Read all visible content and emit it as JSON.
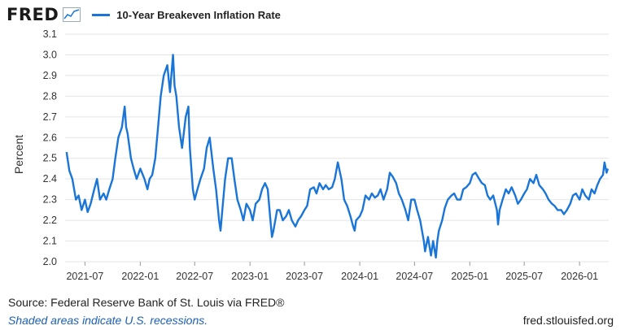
{
  "header": {
    "logo_text": "FRED",
    "logo_icon": "line-chart-icon"
  },
  "chart_data": {
    "type": "line",
    "title": "",
    "legend": "top-left",
    "xlabel": "",
    "ylabel": "Percent",
    "ylim": [
      2.0,
      3.1
    ],
    "yticks": [
      "2.0",
      "2.1",
      "2.2",
      "2.3",
      "2.4",
      "2.5",
      "2.6",
      "2.7",
      "2.8",
      "2.9",
      "3.0",
      "3.1"
    ],
    "xticks": [
      "2021-07",
      "2022-01",
      "2022-07",
      "2023-01",
      "2023-07",
      "2024-01",
      "2024-07",
      "2025-01",
      "2025-07",
      "2026-01"
    ],
    "grid": "horizontal",
    "series": [
      {
        "name": "10-Year Breakeven Inflation Rate",
        "color": "#1a75d8",
        "points": [
          [
            "2021-05-01",
            2.53
          ],
          [
            "2021-05-10",
            2.44
          ],
          [
            "2021-05-20",
            2.4
          ],
          [
            "2021-06-01",
            2.3
          ],
          [
            "2021-06-10",
            2.32
          ],
          [
            "2021-06-20",
            2.25
          ],
          [
            "2021-07-01",
            2.3
          ],
          [
            "2021-07-10",
            2.24
          ],
          [
            "2021-07-20",
            2.28
          ],
          [
            "2021-08-01",
            2.35
          ],
          [
            "2021-08-10",
            2.4
          ],
          [
            "2021-08-20",
            2.3
          ],
          [
            "2021-09-01",
            2.33
          ],
          [
            "2021-09-10",
            2.3
          ],
          [
            "2021-09-20",
            2.35
          ],
          [
            "2021-10-01",
            2.4
          ],
          [
            "2021-10-10",
            2.5
          ],
          [
            "2021-10-20",
            2.6
          ],
          [
            "2021-11-01",
            2.65
          ],
          [
            "2021-11-10",
            2.75
          ],
          [
            "2021-11-15",
            2.65
          ],
          [
            "2021-11-20",
            2.62
          ],
          [
            "2021-12-01",
            2.5
          ],
          [
            "2021-12-10",
            2.45
          ],
          [
            "2021-12-20",
            2.4
          ],
          [
            "2022-01-01",
            2.45
          ],
          [
            "2022-01-15",
            2.4
          ],
          [
            "2022-01-25",
            2.35
          ],
          [
            "2022-02-01",
            2.4
          ],
          [
            "2022-02-10",
            2.42
          ],
          [
            "2022-02-20",
            2.5
          ],
          [
            "2022-03-01",
            2.65
          ],
          [
            "2022-03-10",
            2.8
          ],
          [
            "2022-03-20",
            2.9
          ],
          [
            "2022-04-01",
            2.95
          ],
          [
            "2022-04-10",
            2.82
          ],
          [
            "2022-04-20",
            3.0
          ],
          [
            "2022-04-25",
            2.85
          ],
          [
            "2022-05-01",
            2.8
          ],
          [
            "2022-05-10",
            2.65
          ],
          [
            "2022-05-15",
            2.6
          ],
          [
            "2022-05-20",
            2.55
          ],
          [
            "2022-06-01",
            2.7
          ],
          [
            "2022-06-10",
            2.75
          ],
          [
            "2022-06-15",
            2.55
          ],
          [
            "2022-06-25",
            2.35
          ],
          [
            "2022-07-01",
            2.3
          ],
          [
            "2022-07-10",
            2.35
          ],
          [
            "2022-07-20",
            2.4
          ],
          [
            "2022-08-01",
            2.45
          ],
          [
            "2022-08-10",
            2.55
          ],
          [
            "2022-08-20",
            2.6
          ],
          [
            "2022-09-01",
            2.45
          ],
          [
            "2022-09-10",
            2.35
          ],
          [
            "2022-09-20",
            2.2
          ],
          [
            "2022-09-25",
            2.15
          ],
          [
            "2022-10-01",
            2.25
          ],
          [
            "2022-10-10",
            2.4
          ],
          [
            "2022-10-20",
            2.5
          ],
          [
            "2022-11-01",
            2.5
          ],
          [
            "2022-11-10",
            2.4
          ],
          [
            "2022-11-20",
            2.3
          ],
          [
            "2022-12-01",
            2.25
          ],
          [
            "2022-12-10",
            2.2
          ],
          [
            "2022-12-20",
            2.28
          ],
          [
            "2023-01-01",
            2.25
          ],
          [
            "2023-01-10",
            2.2
          ],
          [
            "2023-01-20",
            2.28
          ],
          [
            "2023-02-01",
            2.3
          ],
          [
            "2023-02-10",
            2.35
          ],
          [
            "2023-02-20",
            2.38
          ],
          [
            "2023-03-01",
            2.35
          ],
          [
            "2023-03-10",
            2.2
          ],
          [
            "2023-03-15",
            2.12
          ],
          [
            "2023-03-20",
            2.15
          ],
          [
            "2023-04-01",
            2.25
          ],
          [
            "2023-04-10",
            2.25
          ],
          [
            "2023-04-20",
            2.2
          ],
          [
            "2023-05-01",
            2.22
          ],
          [
            "2023-05-10",
            2.25
          ],
          [
            "2023-05-20",
            2.2
          ],
          [
            "2023-06-01",
            2.17
          ],
          [
            "2023-06-10",
            2.2
          ],
          [
            "2023-06-20",
            2.22
          ],
          [
            "2023-07-01",
            2.25
          ],
          [
            "2023-07-10",
            2.27
          ],
          [
            "2023-07-20",
            2.35
          ],
          [
            "2023-08-01",
            2.36
          ],
          [
            "2023-08-10",
            2.33
          ],
          [
            "2023-08-20",
            2.38
          ],
          [
            "2023-09-01",
            2.35
          ],
          [
            "2023-09-10",
            2.37
          ],
          [
            "2023-09-20",
            2.35
          ],
          [
            "2023-10-01",
            2.36
          ],
          [
            "2023-10-10",
            2.4
          ],
          [
            "2023-10-20",
            2.48
          ],
          [
            "2023-11-01",
            2.4
          ],
          [
            "2023-11-10",
            2.3
          ],
          [
            "2023-11-20",
            2.27
          ],
          [
            "2023-12-01",
            2.22
          ],
          [
            "2023-12-10",
            2.17
          ],
          [
            "2023-12-15",
            2.15
          ],
          [
            "2023-12-20",
            2.2
          ],
          [
            "2024-01-01",
            2.22
          ],
          [
            "2024-01-10",
            2.25
          ],
          [
            "2024-01-20",
            2.32
          ],
          [
            "2024-02-01",
            2.3
          ],
          [
            "2024-02-10",
            2.33
          ],
          [
            "2024-02-20",
            2.31
          ],
          [
            "2024-03-01",
            2.32
          ],
          [
            "2024-03-10",
            2.35
          ],
          [
            "2024-03-20",
            2.3
          ],
          [
            "2024-04-01",
            2.35
          ],
          [
            "2024-04-10",
            2.43
          ],
          [
            "2024-04-20",
            2.41
          ],
          [
            "2024-05-01",
            2.38
          ],
          [
            "2024-05-10",
            2.33
          ],
          [
            "2024-05-20",
            2.3
          ],
          [
            "2024-06-01",
            2.25
          ],
          [
            "2024-06-10",
            2.2
          ],
          [
            "2024-06-20",
            2.3
          ],
          [
            "2024-07-01",
            2.3
          ],
          [
            "2024-07-10",
            2.25
          ],
          [
            "2024-07-20",
            2.2
          ],
          [
            "2024-08-01",
            2.1
          ],
          [
            "2024-08-05",
            2.05
          ],
          [
            "2024-08-15",
            2.12
          ],
          [
            "2024-08-25",
            2.03
          ],
          [
            "2024-09-01",
            2.1
          ],
          [
            "2024-09-10",
            2.02
          ],
          [
            "2024-09-15",
            2.1
          ],
          [
            "2024-09-20",
            2.15
          ],
          [
            "2024-10-01",
            2.2
          ],
          [
            "2024-10-10",
            2.26
          ],
          [
            "2024-10-20",
            2.3
          ],
          [
            "2024-11-01",
            2.32
          ],
          [
            "2024-11-10",
            2.33
          ],
          [
            "2024-11-20",
            2.3
          ],
          [
            "2024-12-01",
            2.3
          ],
          [
            "2024-12-10",
            2.35
          ],
          [
            "2024-12-20",
            2.36
          ],
          [
            "2025-01-01",
            2.38
          ],
          [
            "2025-01-10",
            2.42
          ],
          [
            "2025-01-20",
            2.43
          ],
          [
            "2025-02-01",
            2.4
          ],
          [
            "2025-02-10",
            2.38
          ],
          [
            "2025-02-20",
            2.37
          ],
          [
            "2025-03-01",
            2.32
          ],
          [
            "2025-03-10",
            2.3
          ],
          [
            "2025-03-20",
            2.32
          ],
          [
            "2025-04-01",
            2.25
          ],
          [
            "2025-04-05",
            2.18
          ],
          [
            "2025-04-10",
            2.25
          ],
          [
            "2025-04-20",
            2.3
          ],
          [
            "2025-05-01",
            2.35
          ],
          [
            "2025-05-10",
            2.33
          ],
          [
            "2025-05-20",
            2.36
          ],
          [
            "2025-06-01",
            2.32
          ],
          [
            "2025-06-10",
            2.28
          ],
          [
            "2025-06-20",
            2.3
          ],
          [
            "2025-07-01",
            2.33
          ],
          [
            "2025-07-10",
            2.35
          ],
          [
            "2025-07-20",
            2.4
          ],
          [
            "2025-08-01",
            2.38
          ],
          [
            "2025-08-10",
            2.42
          ],
          [
            "2025-08-20",
            2.37
          ],
          [
            "2025-09-01",
            2.35
          ],
          [
            "2025-09-10",
            2.33
          ],
          [
            "2025-09-20",
            2.3
          ],
          [
            "2025-10-01",
            2.28
          ],
          [
            "2025-10-10",
            2.27
          ],
          [
            "2025-10-20",
            2.25
          ],
          [
            "2025-11-01",
            2.25
          ],
          [
            "2025-11-10",
            2.23
          ],
          [
            "2025-11-20",
            2.25
          ],
          [
            "2025-12-01",
            2.28
          ],
          [
            "2025-12-10",
            2.32
          ],
          [
            "2025-12-20",
            2.33
          ],
          [
            "2026-01-01",
            2.3
          ],
          [
            "2026-01-10",
            2.35
          ],
          [
            "2026-01-20",
            2.32
          ],
          [
            "2026-02-01",
            2.3
          ],
          [
            "2026-02-10",
            2.35
          ],
          [
            "2026-02-20",
            2.33
          ],
          [
            "2026-03-01",
            2.37
          ],
          [
            "2026-03-10",
            2.4
          ],
          [
            "2026-03-20",
            2.42
          ],
          [
            "2026-03-25",
            2.48
          ],
          [
            "2026-04-01",
            2.43
          ],
          [
            "2026-04-05",
            2.45
          ]
        ]
      }
    ]
  },
  "footer": {
    "source": "Source: Federal Reserve Bank of St. Louis via FRED®",
    "note": "Shaded areas indicate U.S. recessions.",
    "url": "fred.stlouisfed.org"
  }
}
